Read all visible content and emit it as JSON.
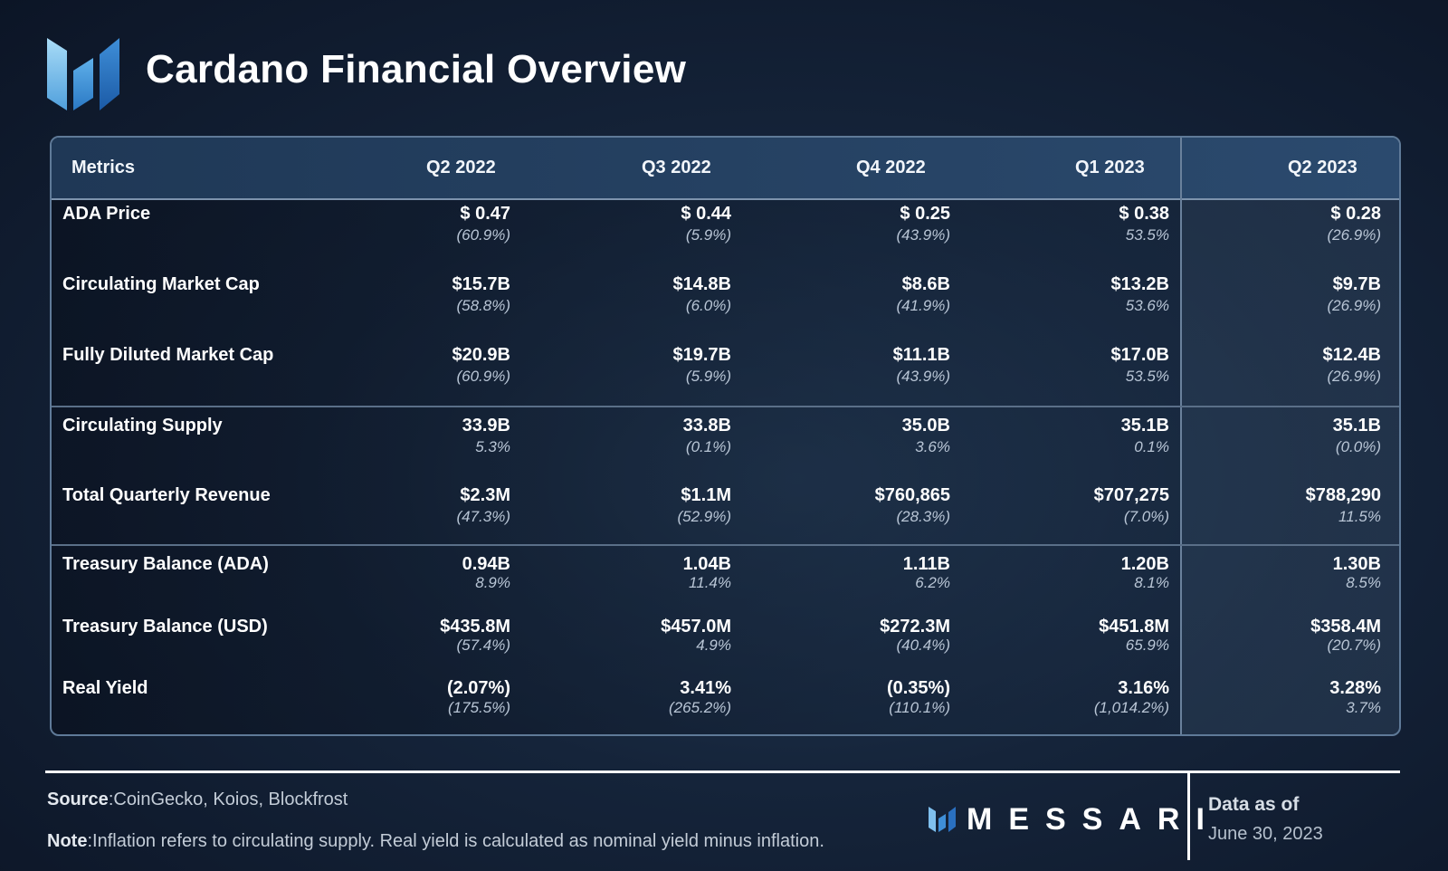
{
  "title": "Cardano Financial Overview",
  "header": {
    "metrics_label": "Metrics",
    "quarters": [
      "Q2 2022",
      "Q3 2022",
      "Q4 2022",
      "Q1 2023",
      "Q2 2023"
    ]
  },
  "chart_data": {
    "type": "table",
    "title": "Cardano Financial Overview",
    "columns": [
      "Metrics",
      "Q2 2022",
      "Q3 2022",
      "Q4 2022",
      "Q1 2023",
      "Q2 2023"
    ],
    "rows": [
      {
        "metric": "ADA Price",
        "values": [
          "$ 0.47",
          "$ 0.44",
          "$ 0.25",
          "$ 0.38",
          "$ 0.28"
        ],
        "changes": [
          "(60.9%)",
          "(5.9%)",
          "(43.9%)",
          "53.5%",
          "(26.9%)"
        ]
      },
      {
        "metric": "Circulating Market Cap",
        "values": [
          "$15.7B",
          "$14.8B",
          "$8.6B",
          "$13.2B",
          "$9.7B"
        ],
        "changes": [
          "(58.8%)",
          "(6.0%)",
          "(41.9%)",
          "53.6%",
          "(26.9%)"
        ]
      },
      {
        "metric": "Fully Diluted Market Cap",
        "values": [
          "$20.9B",
          "$19.7B",
          "$11.1B",
          "$17.0B",
          "$12.4B"
        ],
        "changes": [
          "(60.9%)",
          "(5.9%)",
          "(43.9%)",
          "53.5%",
          "(26.9%)"
        ]
      },
      {
        "metric": "Circulating Supply",
        "values": [
          "33.9B",
          "33.8B",
          "35.0B",
          "35.1B",
          "35.1B"
        ],
        "changes": [
          "5.3%",
          "(0.1%)",
          "3.6%",
          "0.1%",
          "(0.0%)"
        ]
      },
      {
        "metric": "Total Quarterly Revenue",
        "values": [
          "$2.3M",
          "$1.1M",
          "$760,865",
          "$707,275",
          "$788,290"
        ],
        "changes": [
          "(47.3%)",
          "(52.9%)",
          "(28.3%)",
          "(7.0%)",
          "11.5%"
        ]
      },
      {
        "metric": "Treasury Balance (ADA)",
        "values": [
          "0.94B",
          "1.04B",
          "1.11B",
          "1.20B",
          "1.30B"
        ],
        "changes": [
          "8.9%",
          "11.4%",
          "6.2%",
          "8.1%",
          "8.5%"
        ]
      },
      {
        "metric": "Treasury Balance (USD)",
        "values": [
          "$435.8M",
          "$457.0M",
          "$272.3M",
          "$451.8M",
          "$358.4M"
        ],
        "changes": [
          "(57.4%)",
          "4.9%",
          "(40.4%)",
          "65.9%",
          "(20.7%)"
        ]
      },
      {
        "metric": "Real Yield",
        "values": [
          "(2.07%)",
          "3.41%",
          "(0.35%)",
          "3.16%",
          "3.28%"
        ],
        "changes": [
          "(175.5%)",
          "(265.2%)",
          "(110.1%)",
          "(1,014.2%)",
          "3.7%"
        ]
      }
    ]
  },
  "footer": {
    "source_label": "Source",
    "source_text": ":CoinGecko, Koios, Blockfrost",
    "note_label": "Note",
    "note_text": ":Inflation refers to circulating supply. Real yield is calculated as nominal yield minus inflation.",
    "brand": "MESSARI",
    "asof_label": "Data as of",
    "asof_date": "June 30, 2023"
  },
  "colors": {
    "accent_light": "#8cc8f0",
    "accent_mid": "#3d8fd6",
    "accent_dark": "#1e5fa8"
  },
  "icons": [
    "messari-logo-icon",
    "messari-small-logo-icon"
  ]
}
